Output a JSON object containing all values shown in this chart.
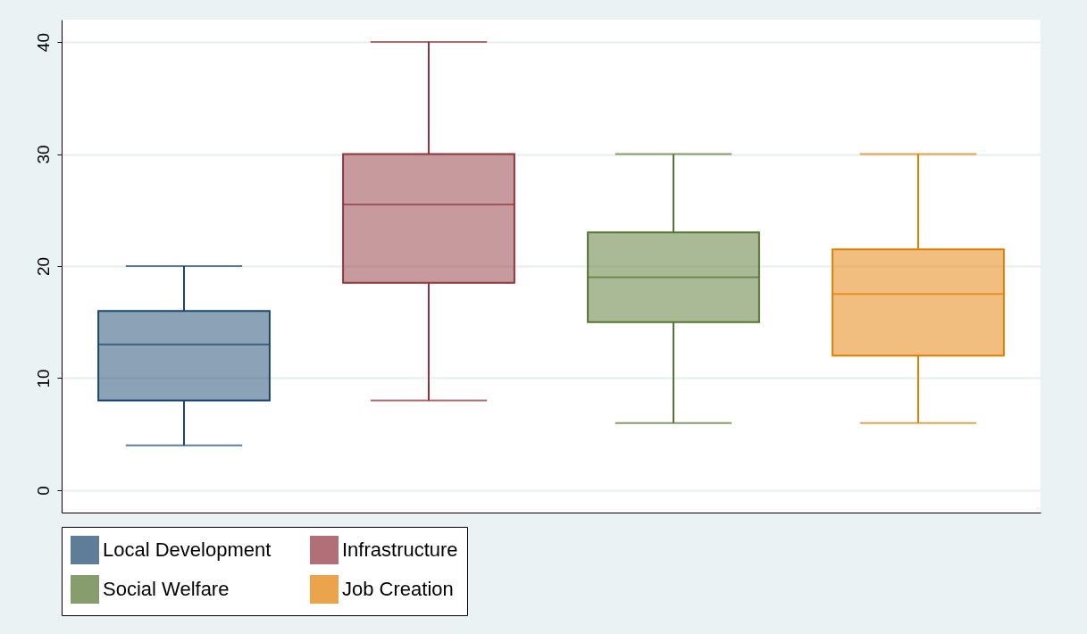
{
  "chart_data": {
    "type": "box",
    "categories": [
      null
    ],
    "series": [
      {
        "name": "Local Development",
        "color": "#1a476f",
        "boxes": [
          {
            "low": 4,
            "q1": 8,
            "median": 13,
            "q3": 16,
            "high": 20
          }
        ]
      },
      {
        "name": "Infrastructure",
        "color": "#90353b",
        "boxes": [
          {
            "low": 8,
            "q1": 18.5,
            "median": 25.5,
            "q3": 30,
            "high": 40
          }
        ]
      },
      {
        "name": "Social Welfare",
        "color": "#55752f",
        "boxes": [
          {
            "low": 6,
            "q1": 15,
            "median": 19,
            "q3": 23,
            "high": 30
          }
        ]
      },
      {
        "name": "Job Creation",
        "color": "#e37e00",
        "boxes": [
          {
            "low": 6,
            "q1": 12,
            "median": 17.5,
            "q3": 21.5,
            "high": 30
          }
        ]
      }
    ],
    "ylim": [
      -2,
      42
    ],
    "yticks": [
      0,
      10,
      20,
      30,
      40
    ],
    "grid": "y",
    "legend": "bottom",
    "tick_labels": "y"
  }
}
